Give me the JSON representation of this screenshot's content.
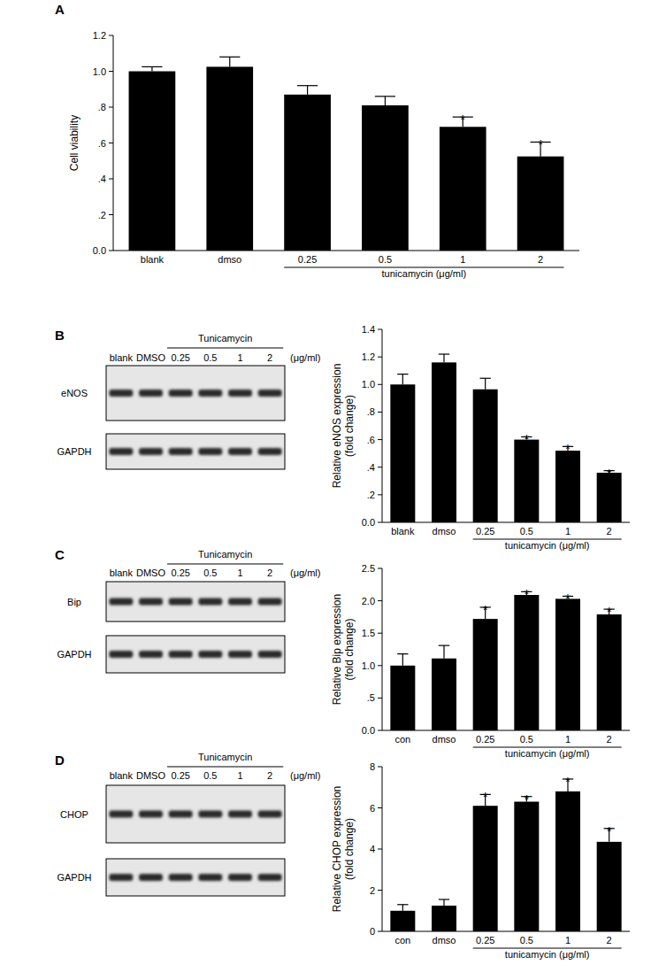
{
  "chart_data": [
    {
      "type": "bar",
      "ylabel": "Cell viability",
      "categories": [
        "blank",
        "dmso",
        "0.25",
        "0.5",
        "1",
        "2"
      ],
      "values": [
        1.0,
        1.025,
        0.87,
        0.81,
        0.69,
        0.525
      ],
      "errors": [
        0.025,
        0.055,
        0.05,
        0.05,
        0.055,
        0.08
      ],
      "significant": [
        false,
        false,
        false,
        false,
        true,
        true
      ],
      "significance_mark": "*",
      "xlabel": "tunicamycin (μg/ml)",
      "xlabel_span": [
        "0.25",
        "2"
      ],
      "color": "#000000",
      "ylim": [
        0,
        1.2
      ],
      "yticks": [
        {
          "value": 0,
          "label": "0.0"
        },
        {
          "value": 0.2,
          "label": ".2"
        },
        {
          "value": 0.4,
          "label": ".4"
        },
        {
          "value": 0.6,
          "label": ".6"
        },
        {
          "value": 0.8,
          "label": ".8"
        },
        {
          "value": 1,
          "label": "1.0"
        },
        1.2
      ]
    },
    {
      "type": "bar",
      "ylabel": "Relative eNOS expression\n(fold change)",
      "categories": [
        "blank",
        "dmso",
        "0.25",
        "0.5",
        "1",
        "2"
      ],
      "values": [
        1.0,
        1.16,
        0.965,
        0.6,
        0.52,
        0.36
      ],
      "errors": [
        0.075,
        0.06,
        0.08,
        0.02,
        0.03,
        0.015
      ],
      "significant": [
        false,
        false,
        false,
        true,
        true,
        true
      ],
      "significance_mark": "*",
      "xlabel": "tunicamycin (μg/ml)",
      "xlabel_span": [
        "0.25",
        "2"
      ],
      "color": "#000000",
      "ylim": [
        0,
        1.4
      ],
      "yticks": [
        {
          "value": 0,
          "label": "0.0"
        },
        {
          "value": 0.2,
          "label": ".2"
        },
        {
          "value": 0.4,
          "label": ".4"
        },
        {
          "value": 0.6,
          "label": ".6"
        },
        {
          "value": 0.8,
          "label": ".8"
        },
        {
          "value": 1,
          "label": "1.0"
        },
        1.2,
        1.4
      ]
    },
    {
      "type": "bar",
      "ylabel": "Relative Bip expression\n(fold change)",
      "categories": [
        "con",
        "dmso",
        "0.25",
        "0.5",
        "1",
        "2"
      ],
      "values": [
        1.0,
        1.11,
        1.72,
        2.09,
        2.03,
        1.79
      ],
      "errors": [
        0.18,
        0.2,
        0.18,
        0.05,
        0.04,
        0.08
      ],
      "significant": [
        false,
        false,
        true,
        true,
        true,
        true
      ],
      "significance_mark": "*",
      "xlabel": "tunicamycin (μg/ml)",
      "xlabel_span": [
        "0.25",
        "2"
      ],
      "color": "#000000",
      "ylim": [
        0,
        2.5
      ],
      "yticks": [
        {
          "value": 0,
          "label": "0.0"
        },
        {
          "value": 0.5,
          "label": ".5"
        },
        {
          "value": 1,
          "label": "1.0"
        },
        1.5,
        {
          "value": 2,
          "label": "2.0"
        },
        2.5
      ]
    },
    {
      "type": "bar",
      "ylabel": "Relative CHOP expression\n(fold change)",
      "categories": [
        "con",
        "dmso",
        "0.25",
        "0.5",
        "1",
        "2"
      ],
      "values": [
        1.0,
        1.25,
        6.1,
        6.3,
        6.8,
        4.35
      ],
      "errors": [
        0.3,
        0.3,
        0.55,
        0.25,
        0.6,
        0.65
      ],
      "significant": [
        false,
        false,
        true,
        true,
        true,
        true
      ],
      "significance_mark": "*",
      "xlabel": "tunicamycin (μg/ml)",
      "xlabel_span": [
        "0.25",
        "2"
      ],
      "color": "#000000",
      "ylim": [
        0,
        8
      ],
      "yticks": [
        0,
        2,
        4,
        6,
        8
      ]
    }
  ],
  "panel_labels": [
    "A",
    "B",
    "C",
    "D"
  ],
  "blots": [
    {
      "group_label": "Tunicamycin",
      "unit": "(μg/ml)",
      "group_span": [
        "0.25",
        "2"
      ],
      "lanes": [
        "blank",
        "DMSO",
        "0.25",
        "0.5",
        "1",
        "2"
      ],
      "rows": [
        "eNOS",
        "GAPDH"
      ]
    },
    {
      "group_label": "Tunicamycin",
      "unit": "(μg/ml)",
      "group_span": [
        "0.25",
        "2"
      ],
      "lanes": [
        "blank",
        "DMSO",
        "0.25",
        "0.5",
        "1",
        "2"
      ],
      "rows": [
        "Bip",
        "GAPDH"
      ]
    },
    {
      "group_label": "Tunicamycin",
      "unit": "(μg/ml)",
      "group_span": [
        "0.25",
        "2"
      ],
      "lanes": [
        "blank",
        "DMSO",
        "0.25",
        "0.5",
        "1",
        "2"
      ],
      "rows": [
        "CHOP",
        "GAPDH"
      ]
    }
  ]
}
